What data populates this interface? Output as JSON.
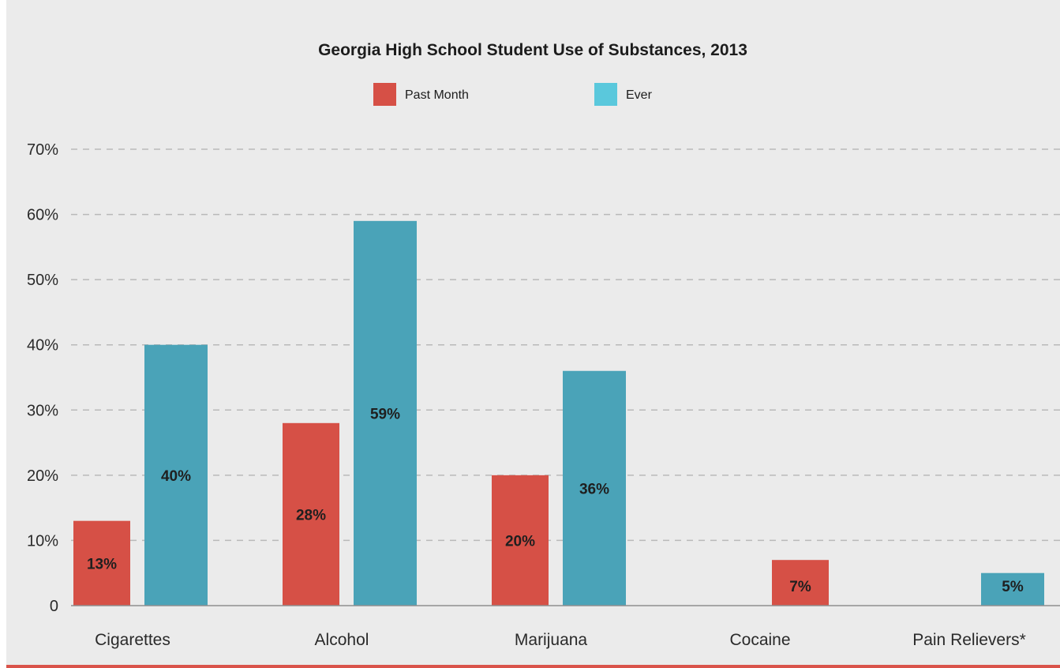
{
  "chart_data": {
    "type": "bar",
    "title": "Georgia High School Student Use of Substances, 2013",
    "categories": [
      "Cigarettes",
      "Alcohol",
      "Marijuana",
      "Cocaine",
      "Pain Relievers*"
    ],
    "series": [
      {
        "name": "Past Month",
        "color": "#d65046",
        "values": [
          13,
          28,
          20,
          7,
          null
        ]
      },
      {
        "name": "Ever",
        "color": "#4aa3b8",
        "values": [
          40,
          59,
          36,
          null,
          5
        ]
      }
    ],
    "data_labels": [
      [
        "13%",
        "28%",
        "20%",
        "7%",
        null
      ],
      [
        "40%",
        "59%",
        "36%",
        null,
        "5%"
      ]
    ],
    "legend": {
      "position": "top-center",
      "swatch_colors": [
        "#d65046",
        "#5ac8dc"
      ]
    },
    "ylim": [
      0,
      70
    ],
    "yticks": [
      0,
      10,
      20,
      30,
      40,
      50,
      60,
      70
    ],
    "ytick_labels": [
      "0",
      "10%",
      "20%",
      "30%",
      "40%",
      "50%",
      "60%",
      "70%"
    ],
    "grid": true,
    "xlabel": "",
    "ylabel": ""
  }
}
